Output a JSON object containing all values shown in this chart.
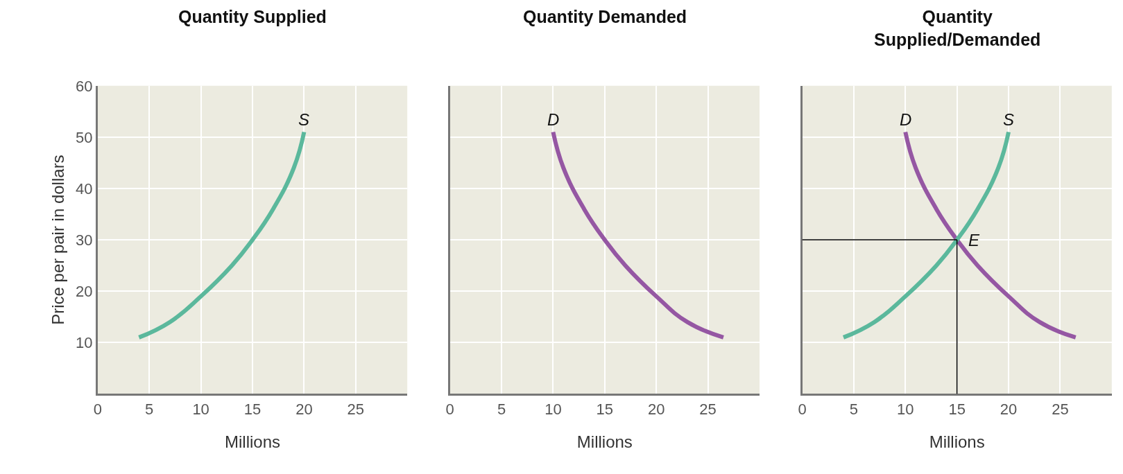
{
  "chart_data": [
    {
      "type": "line",
      "title": "Quantity Supplied",
      "xlabel": "Millions",
      "ylabel": "Price per pair in dollars",
      "xlim": [
        0,
        30
      ],
      "xticks": [
        0,
        5,
        10,
        15,
        20,
        25
      ],
      "ylim": [
        0,
        60
      ],
      "yticks": [
        10,
        20,
        30,
        40,
        50,
        60
      ],
      "grid": true,
      "series": [
        {
          "name": "S",
          "color": "#5bb89c",
          "x": [
            4,
            7,
            10,
            13,
            15,
            17,
            19,
            20
          ],
          "values": [
            11,
            14,
            19,
            25,
            30,
            36,
            44,
            51
          ]
        }
      ]
    },
    {
      "type": "line",
      "title": "Quantity Demanded",
      "xlabel": "Millions",
      "xlim": [
        0,
        30
      ],
      "xticks": [
        0,
        5,
        10,
        15,
        20,
        25
      ],
      "ylim": [
        0,
        60
      ],
      "yticks": [
        10,
        20,
        30,
        40,
        50,
        60
      ],
      "grid": true,
      "tick_labels": "x",
      "series": [
        {
          "name": "D",
          "color": "#9557a3",
          "x": [
            10,
            11,
            13,
            15,
            17,
            20,
            23,
            26.5
          ],
          "values": [
            51,
            44,
            36,
            30,
            25,
            19,
            14,
            11
          ]
        }
      ]
    },
    {
      "type": "line",
      "title": "Quantity\nSupplied/Demanded",
      "xlabel": "Millions",
      "xlim": [
        0,
        30
      ],
      "xticks": [
        0,
        5,
        10,
        15,
        20,
        25
      ],
      "ylim": [
        0,
        60
      ],
      "yticks": [
        10,
        20,
        30,
        40,
        50,
        60
      ],
      "grid": true,
      "tick_labels": "x",
      "series": [
        {
          "name": "D",
          "color": "#9557a3",
          "x": [
            10,
            11,
            13,
            15,
            17,
            20,
            23,
            26.5
          ],
          "values": [
            51,
            44,
            36,
            30,
            25,
            19,
            14,
            11
          ]
        },
        {
          "name": "S",
          "color": "#5bb89c",
          "x": [
            4,
            7,
            10,
            13,
            15,
            17,
            19,
            20
          ],
          "values": [
            11,
            14,
            19,
            25,
            30,
            36,
            44,
            51
          ]
        }
      ],
      "ref_lines": [
        {
          "axis": "x",
          "value": 15,
          "color": "#000000"
        },
        {
          "axis": "y",
          "value": 30,
          "color": "#000000"
        }
      ],
      "annotations": [
        {
          "text": "E",
          "x": 15,
          "y": 30
        }
      ]
    }
  ]
}
